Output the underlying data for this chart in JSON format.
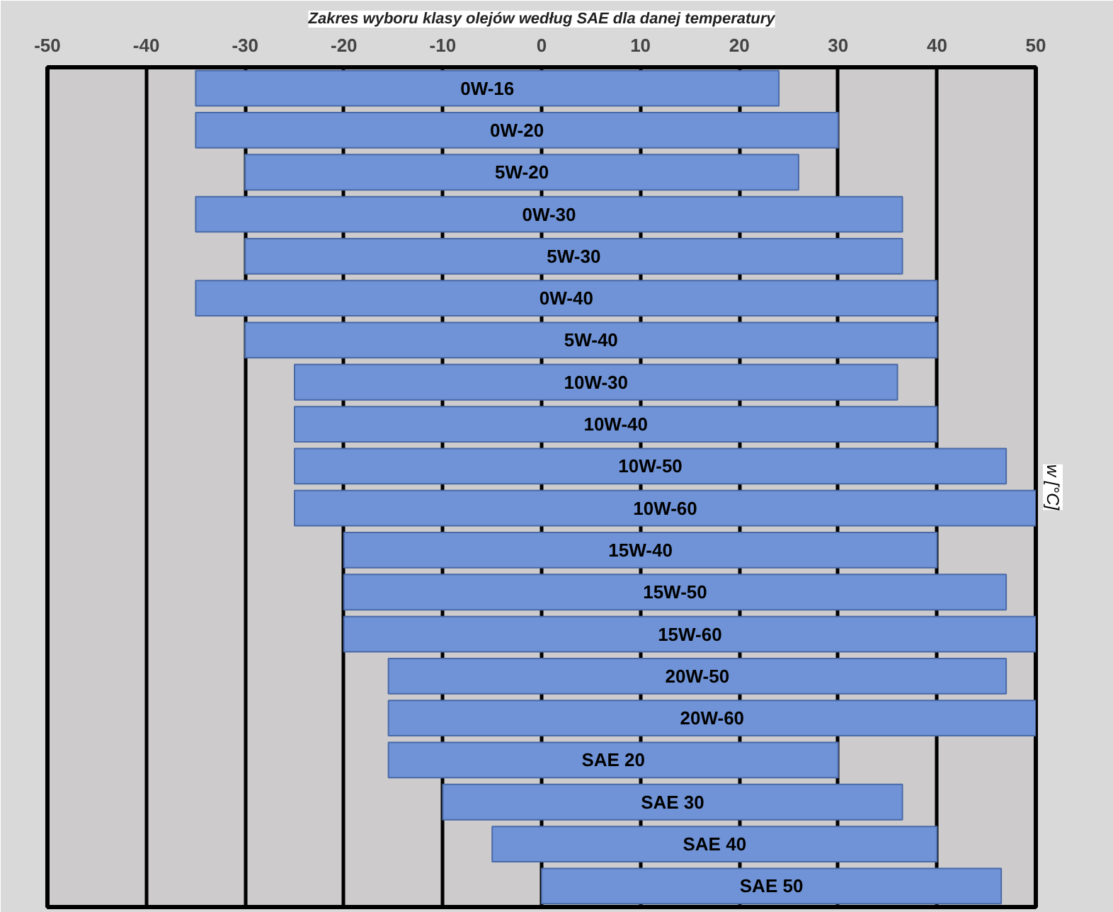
{
  "chart_data": {
    "type": "bar",
    "orientation": "horizontal",
    "title": "Zakres wyboru klasy olejów według SAE dla danej temperatury",
    "y2label": "w [°C]",
    "categories": [
      "0W-16",
      "0W-20",
      "5W-20",
      "0W-30",
      "5W-30",
      "0W-40",
      "5W-40",
      "10W-30",
      "10W-40",
      "10W-50",
      "10W-60",
      "15W-40",
      "15W-50",
      "15W-60",
      "20W-50",
      "20W-60",
      "SAE 20",
      "SAE 30",
      "SAE 40",
      "SAE 50"
    ],
    "base": [
      -35,
      -35,
      -30,
      -35,
      -30,
      -35,
      -30,
      -25,
      -25,
      -25,
      -25,
      -20,
      -20,
      -20,
      -15.5,
      -15.5,
      -15.5,
      -10,
      -5,
      0
    ],
    "values": [
      59,
      65,
      56,
      71.5,
      66.5,
      75,
      70,
      61,
      65,
      72,
      75,
      60,
      67,
      70,
      62.5,
      65.5,
      45.5,
      46.5,
      45,
      46.5
    ],
    "color": "#6f93d6",
    "xlim": [
      -50,
      50
    ],
    "xticks": [
      -50,
      -40,
      -30,
      -20,
      -10,
      0,
      10,
      20,
      30,
      40,
      50
    ],
    "grid": "x",
    "tick_labels": "x"
  }
}
